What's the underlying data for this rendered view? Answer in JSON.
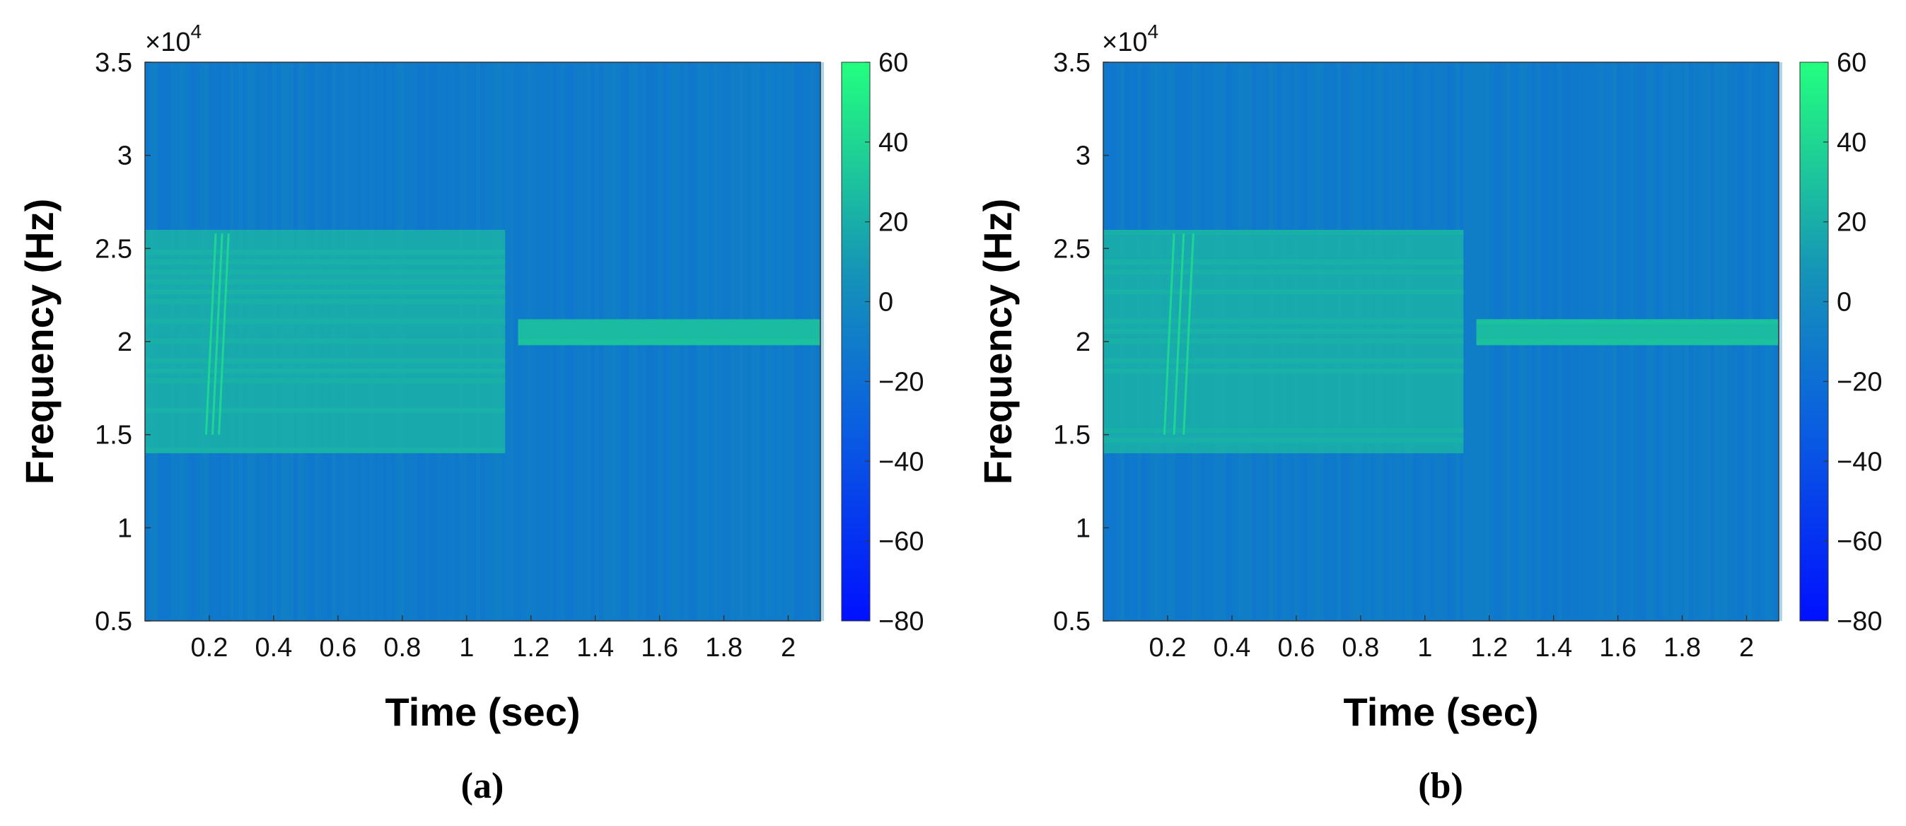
{
  "figure": {
    "panels": [
      {
        "caption": "(a)",
        "exponent_label": "×10",
        "exponent_power": "4"
      },
      {
        "caption": "(b)",
        "exponent_label": "×10",
        "exponent_power": "4"
      }
    ]
  },
  "chart_data": [
    {
      "type": "heatmap",
      "title": "",
      "xlabel": "Time (sec)",
      "ylabel": "Frequency (Hz)",
      "xlim": [
        0.0,
        2.1
      ],
      "ylim": [
        5000,
        35000
      ],
      "xticks": [
        0.2,
        0.4,
        0.6,
        0.8,
        1,
        1.2,
        1.4,
        1.6,
        1.8,
        2
      ],
      "xtick_labels": [
        "0.2",
        "0.4",
        "0.6",
        "0.8",
        "1",
        "1.2",
        "1.4",
        "1.6",
        "1.8",
        "2"
      ],
      "yticks": [
        5000,
        10000,
        15000,
        20000,
        25000,
        30000,
        35000
      ],
      "ytick_labels": [
        "0.5",
        "1",
        "1.5",
        "2",
        "2.5",
        "3",
        "3.5"
      ],
      "y_scale_exponent": 4,
      "colorbar": {
        "min": -80,
        "max": 60,
        "ticks": [
          60,
          40,
          20,
          0,
          -20,
          -40,
          -60,
          -80
        ],
        "tick_labels": [
          "60",
          "40",
          "20",
          "0",
          "−20",
          "−40",
          "−60",
          "−80"
        ]
      },
      "background_level_db": -10,
      "regions": [
        {
          "name": "wideband-burst",
          "t_start": 0.0,
          "t_end": 1.12,
          "f_low": 14000,
          "f_high": 26000,
          "level_db": 22
        },
        {
          "name": "tone",
          "t_start": 1.16,
          "t_end": 2.1,
          "f_low": 19800,
          "f_high": 21200,
          "level_db": 32
        }
      ],
      "chirps": [
        {
          "t_start": 0.19,
          "t_end": 0.22,
          "f_start": 15000,
          "f_end": 25800
        },
        {
          "t_start": 0.21,
          "t_end": 0.24,
          "f_start": 15000,
          "f_end": 25800
        },
        {
          "t_start": 0.23,
          "t_end": 0.26,
          "f_start": 15000,
          "f_end": 25800
        }
      ]
    },
    {
      "type": "heatmap",
      "title": "",
      "xlabel": "Time (sec)",
      "ylabel": "Frequency (Hz)",
      "xlim": [
        0.0,
        2.1
      ],
      "ylim": [
        5000,
        35000
      ],
      "xticks": [
        0.2,
        0.4,
        0.6,
        0.8,
        1,
        1.2,
        1.4,
        1.6,
        1.8,
        2
      ],
      "xtick_labels": [
        "0.2",
        "0.4",
        "0.6",
        "0.8",
        "1",
        "1.2",
        "1.4",
        "1.6",
        "1.8",
        "2"
      ],
      "yticks": [
        5000,
        10000,
        15000,
        20000,
        25000,
        30000,
        35000
      ],
      "ytick_labels": [
        "0.5",
        "1",
        "1.5",
        "2",
        "2.5",
        "3",
        "3.5"
      ],
      "y_scale_exponent": 4,
      "colorbar": {
        "min": -80,
        "max": 60,
        "ticks": [
          60,
          40,
          20,
          0,
          -20,
          -40,
          -60,
          -80
        ],
        "tick_labels": [
          "60",
          "40",
          "20",
          "0",
          "−20",
          "−40",
          "−60",
          "−80"
        ]
      },
      "background_level_db": -10,
      "regions": [
        {
          "name": "wideband-burst",
          "t_start": 0.0,
          "t_end": 1.12,
          "f_low": 14000,
          "f_high": 26000,
          "level_db": 22
        },
        {
          "name": "tone",
          "t_start": 1.16,
          "t_end": 2.1,
          "f_low": 19800,
          "f_high": 21200,
          "level_db": 32
        }
      ],
      "chirps": [
        {
          "t_start": 0.19,
          "t_end": 0.22,
          "f_start": 15000,
          "f_end": 25800
        },
        {
          "t_start": 0.22,
          "t_end": 0.25,
          "f_start": 15000,
          "f_end": 25800
        },
        {
          "t_start": 0.25,
          "t_end": 0.28,
          "f_start": 15000,
          "f_end": 25800
        }
      ]
    }
  ]
}
